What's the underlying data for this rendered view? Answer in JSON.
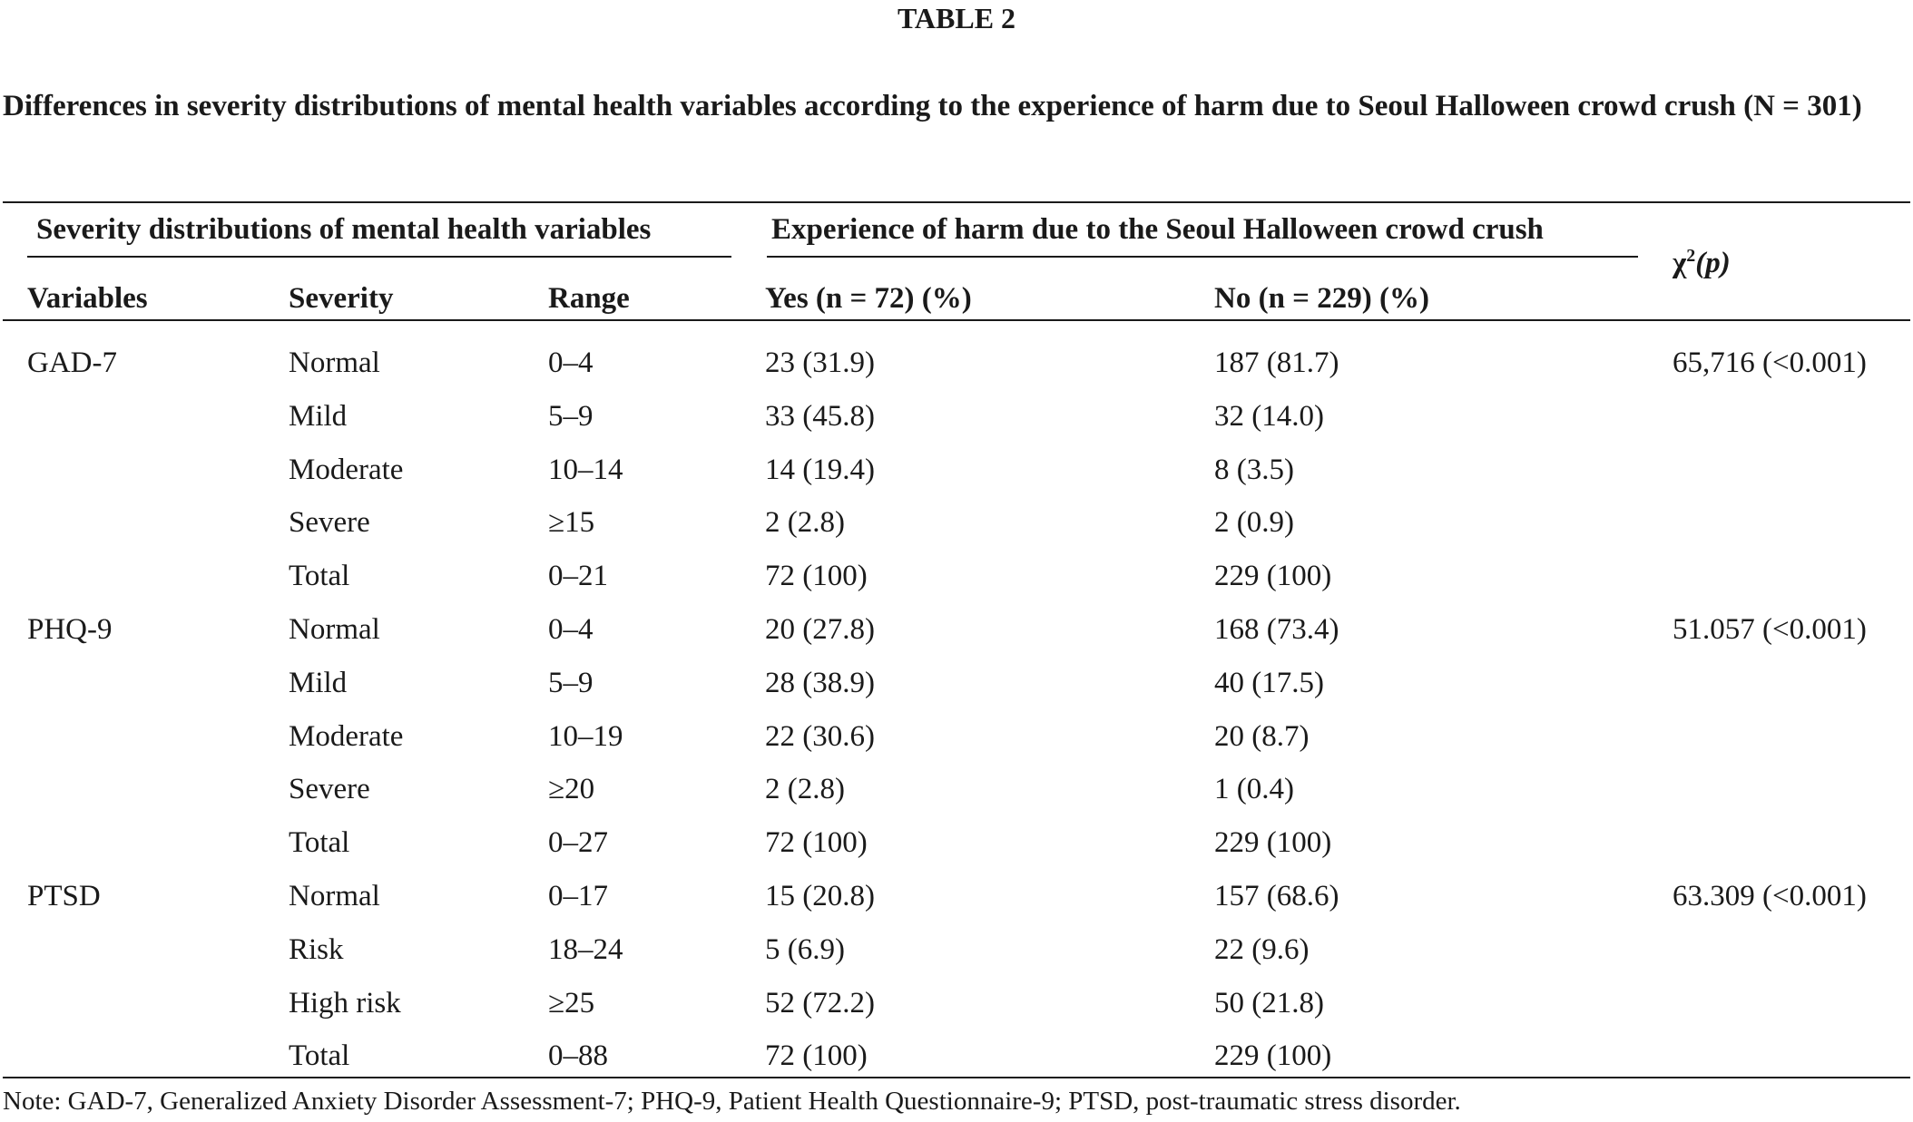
{
  "table_label": "TABLE 2",
  "caption": "Differences in severity distributions of mental health variables according to the experience of harm due to Seoul Halloween crowd crush (N = 301)",
  "header": {
    "group_left": "Severity distributions of mental health variables",
    "group_right": "Experience of harm due to the Seoul Halloween crowd crush",
    "chi_symbol": "χ",
    "chi_sup": "2",
    "chi_p": "(p)",
    "col_variables": "Variables",
    "col_severity": "Severity",
    "col_range": "Range",
    "col_yes": "Yes (n = 72) (%)",
    "col_no": "No (n = 229) (%)"
  },
  "rows": [
    {
      "variable": "GAD-7",
      "severity": "Normal",
      "range": "0–4",
      "yes": "23 (31.9)",
      "no": "187 (81.7)",
      "chi": "65,716 (<0.001)"
    },
    {
      "variable": "",
      "severity": "Mild",
      "range": "5–9",
      "yes": "33 (45.8)",
      "no": "32 (14.0)",
      "chi": ""
    },
    {
      "variable": "",
      "severity": "Moderate",
      "range": "10–14",
      "yes": "14 (19.4)",
      "no": "8 (3.5)",
      "chi": ""
    },
    {
      "variable": "",
      "severity": "Severe",
      "range": "≥15",
      "yes": "2 (2.8)",
      "no": "2 (0.9)",
      "chi": ""
    },
    {
      "variable": "",
      "severity": "Total",
      "range": "0–21",
      "yes": "72 (100)",
      "no": "229 (100)",
      "chi": ""
    },
    {
      "variable": "PHQ-9",
      "severity": "Normal",
      "range": "0–4",
      "yes": "20 (27.8)",
      "no": "168 (73.4)",
      "chi": "51.057 (<0.001)"
    },
    {
      "variable": "",
      "severity": "Mild",
      "range": "5–9",
      "yes": "28 (38.9)",
      "no": "40 (17.5)",
      "chi": ""
    },
    {
      "variable": "",
      "severity": "Moderate",
      "range": "10–19",
      "yes": "22 (30.6)",
      "no": "20 (8.7)",
      "chi": ""
    },
    {
      "variable": "",
      "severity": "Severe",
      "range": "≥20",
      "yes": "2 (2.8)",
      "no": "1 (0.4)",
      "chi": ""
    },
    {
      "variable": "",
      "severity": "Total",
      "range": "0–27",
      "yes": "72 (100)",
      "no": "229 (100)",
      "chi": ""
    },
    {
      "variable": "PTSD",
      "severity": "Normal",
      "range": "0–17",
      "yes": "15 (20.8)",
      "no": "157 (68.6)",
      "chi": "63.309 (<0.001)"
    },
    {
      "variable": "",
      "severity": "Risk",
      "range": "18–24",
      "yes": "5 (6.9)",
      "no": "22 (9.6)",
      "chi": ""
    },
    {
      "variable": "",
      "severity": "High risk",
      "range": "≥25",
      "yes": "52 (72.2)",
      "no": "50 (21.8)",
      "chi": ""
    },
    {
      "variable": "",
      "severity": "Total",
      "range": "0–88",
      "yes": "72 (100)",
      "no": "229 (100)",
      "chi": ""
    }
  ],
  "note": "Note: GAD-7, Generalized Anxiety Disorder Assessment-7; PHQ-9, Patient Health Questionnaire-9; PTSD, post-traumatic stress disorder."
}
